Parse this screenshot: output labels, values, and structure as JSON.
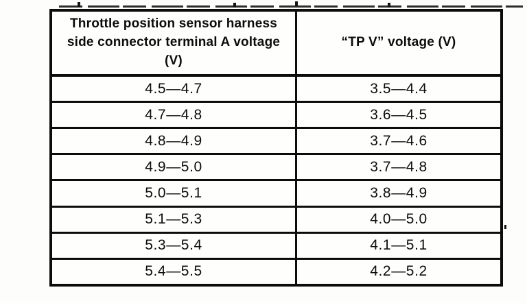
{
  "table": {
    "headers": [
      "Throttle position sensor harness side connector terminal A voltage (V)",
      "“TP V” voltage (V)"
    ],
    "rows": [
      [
        "4.5—4.7",
        "3.5—4.4"
      ],
      [
        "4.7—4.8",
        "3.6—4.5"
      ],
      [
        "4.8—4.9",
        "3.7—4.6"
      ],
      [
        "4.9—5.0",
        "3.7—4.8"
      ],
      [
        "5.0—5.1",
        "3.8—4.9"
      ],
      [
        "5.1—5.3",
        "4.0—5.0"
      ],
      [
        "5.3—5.4",
        "4.1—5.1"
      ],
      [
        "5.4—5.5",
        "4.2—5.2"
      ]
    ]
  },
  "colors": {
    "border": "#0c0c0c",
    "text": "#0c0c0c",
    "background": "#fdfdfb"
  }
}
